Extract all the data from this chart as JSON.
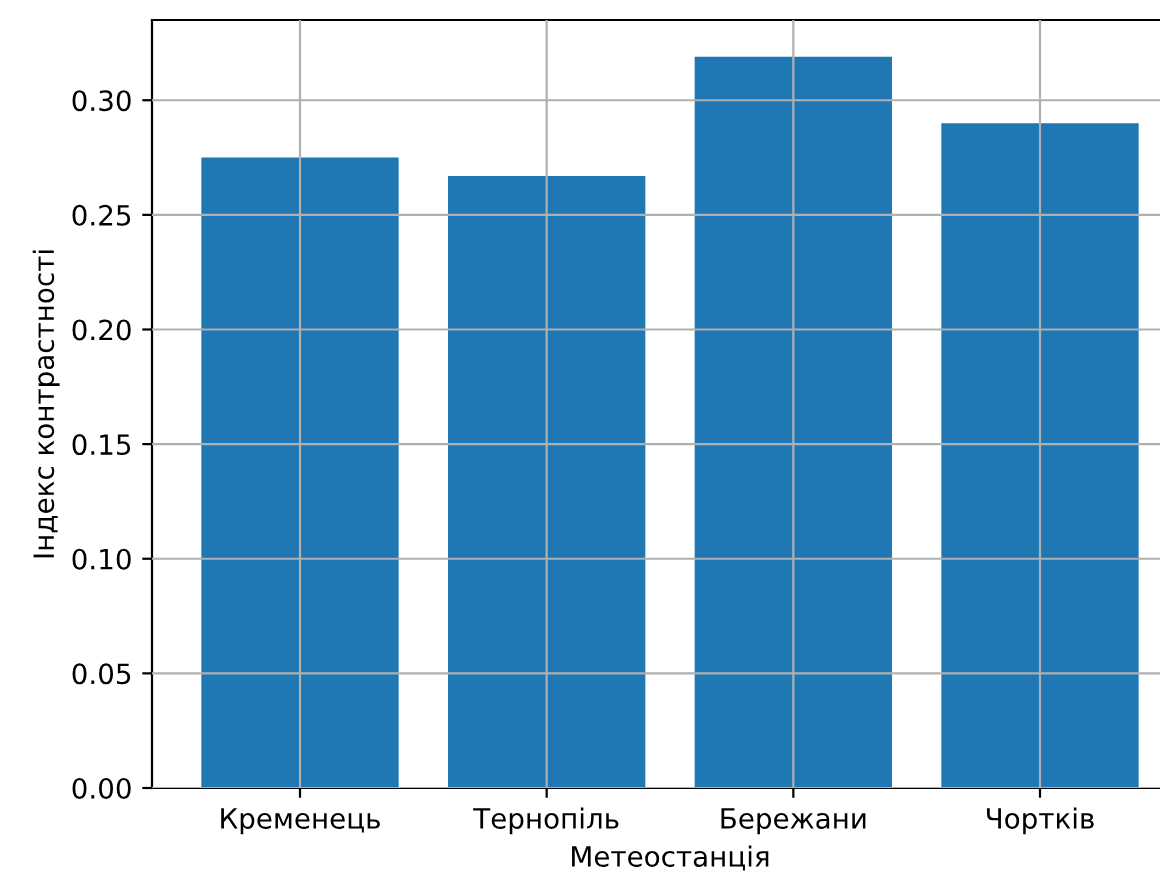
{
  "chart_data": {
    "type": "bar",
    "xlabel": "Метеостанція",
    "ylabel": "Індекс контрастності",
    "categories": [
      "Кременець",
      "Тернопіль",
      "Бережани",
      "Чортків"
    ],
    "values": [
      0.275,
      0.267,
      0.319,
      0.29
    ],
    "color": "#1f77b4",
    "ylim": [
      0,
      0.335
    ],
    "yticks": [
      {
        "value": 0,
        "label": "0.00"
      },
      {
        "value": 0.05,
        "label": "0.05"
      },
      {
        "value": 0.1,
        "label": "0.10"
      },
      {
        "value": 0.15,
        "label": "0.15"
      },
      {
        "value": 0.2,
        "label": "0.20"
      },
      {
        "value": 0.25,
        "label": "0.25"
      },
      {
        "value": 0.3,
        "label": "0.30"
      }
    ],
    "grid": true
  }
}
